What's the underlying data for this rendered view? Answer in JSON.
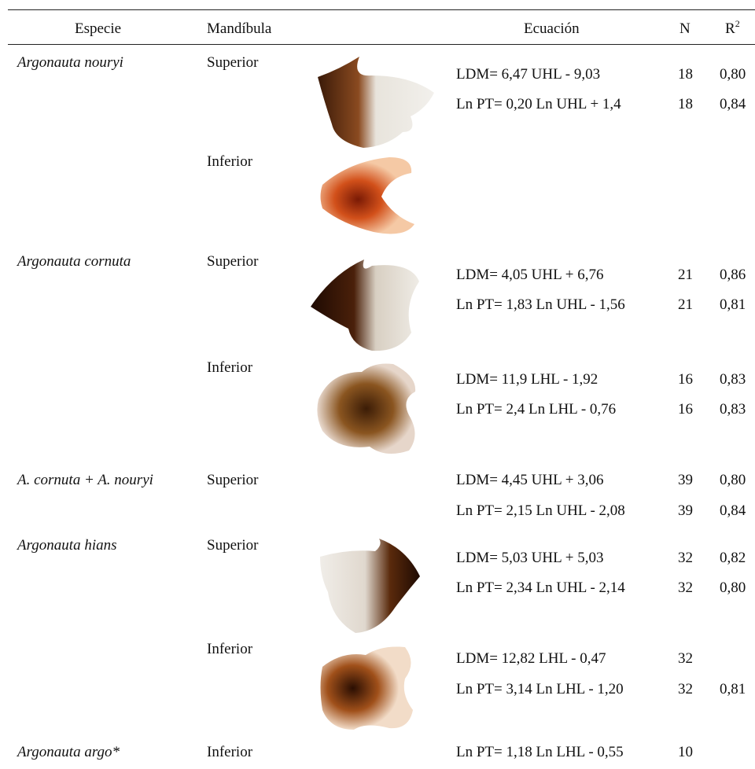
{
  "header": {
    "species": "Especie",
    "mandible": "Mandíbula",
    "equation": "Ecuación",
    "n": "N",
    "r2": {
      "base": "R",
      "sup": "2"
    }
  },
  "rows": [
    {
      "species": "Argonauta nouryi",
      "mandible": "Superior",
      "equations": [
        {
          "equation": "LDM= 6,47 UHL - 9,03",
          "n": "18",
          "r2": "0,80"
        },
        {
          "equation": "Ln PT= 0,20 Ln UHL + 1,4",
          "n": "18",
          "r2": "0,84"
        }
      ]
    },
    {
      "mandible": "Inferior"
    },
    {
      "species": "Argonauta cornuta",
      "mandible": "Superior",
      "equations": [
        {
          "equation": "LDM= 4,05 UHL + 6,76",
          "n": "21",
          "r2": "0,86"
        },
        {
          "equation": "Ln PT= 1,83 Ln UHL - 1,56",
          "n": "21",
          "r2": "0,81"
        }
      ]
    },
    {
      "mandible": "Inferior",
      "equations": [
        {
          "equation": "LDM= 11,9 LHL - 1,92",
          "n": "16",
          "r2": "0,83"
        },
        {
          "equation": "Ln PT= 2,4 Ln LHL - 0,76",
          "n": "16",
          "r2": "0,83"
        }
      ]
    },
    {
      "species": "A. cornuta + A. nouryi",
      "mandible": "Superior",
      "equations": [
        {
          "equation": "LDM= 4,45 UHL + 3,06",
          "n": "39",
          "r2": "0,80"
        },
        {
          "equation": "Ln PT= 2,15 Ln UHL - 2,08",
          "n": "39",
          "r2": "0,84"
        }
      ]
    },
    {
      "species": "Argonauta hians",
      "mandible": "Superior",
      "equations": [
        {
          "equation": "LDM= 5,03 UHL + 5,03",
          "n": "32",
          "r2": "0,82"
        },
        {
          "equation": "Ln PT= 2,34 Ln UHL - 2,14",
          "n": "32",
          "r2": "0,80"
        }
      ]
    },
    {
      "mandible": "Inferior",
      "equations": [
        {
          "equation": "LDM= 12,82 LHL - 0,47",
          "n": "32"
        },
        {
          "equation": "Ln PT= 3,14 Ln LHL - 1,20",
          "n": "32",
          "r2": "0,81"
        }
      ]
    },
    {
      "species": "Argonauta argo*",
      "mandible": "Inferior",
      "equations": [
        {
          "equation": "Ln PT= 1,18 Ln LHL - 0,55",
          "n": "10"
        }
      ]
    }
  ]
}
